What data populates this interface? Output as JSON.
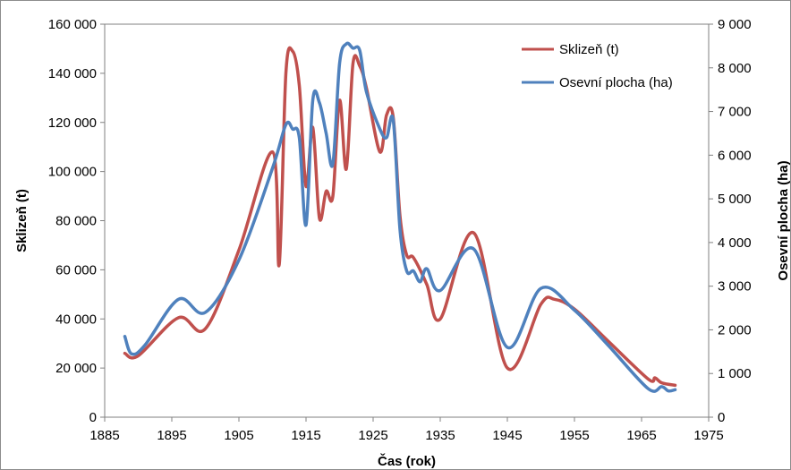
{
  "chart_data": {
    "type": "line",
    "title": "",
    "xlabel": "Čas (rok)",
    "ylabel": "Sklizeň (t)",
    "y2label": "Osevní plocha (ha)",
    "xlim": [
      1885,
      1975
    ],
    "ylim": [
      0,
      160000
    ],
    "y2lim": [
      0,
      9000
    ],
    "x_ticks": [
      "1885",
      "1895",
      "1905",
      "1915",
      "1925",
      "1935",
      "1945",
      "1955",
      "1965",
      "1975"
    ],
    "y_ticks": [
      "0",
      "20 000",
      "40 000",
      "60 000",
      "80 000",
      "100 000",
      "120 000",
      "140 000",
      "160 000"
    ],
    "y2_ticks": [
      "0",
      "1 000",
      "2 000",
      "3 000",
      "4 000",
      "5 000",
      "6 000",
      "7 000",
      "8 000",
      "9 000"
    ],
    "grid": false,
    "legend_position": "top-right",
    "series": [
      {
        "name": "Sklizeň (t)",
        "axis": "left",
        "color": "#c0504d",
        "points": [
          [
            1888,
            26000
          ],
          [
            1890,
            25000
          ],
          [
            1896,
            40500
          ],
          [
            1900,
            36000
          ],
          [
            1905,
            68000
          ],
          [
            1910,
            108000
          ],
          [
            1911,
            62000
          ],
          [
            1912,
            140000
          ],
          [
            1913,
            149000
          ],
          [
            1914,
            135000
          ],
          [
            1915,
            94000
          ],
          [
            1916,
            118000
          ],
          [
            1917,
            81000
          ],
          [
            1918,
            92000
          ],
          [
            1919,
            90000
          ],
          [
            1920,
            129000
          ],
          [
            1921,
            101000
          ],
          [
            1922,
            144000
          ],
          [
            1923,
            143000
          ],
          [
            1924,
            134000
          ],
          [
            1926,
            108000
          ],
          [
            1927,
            123000
          ],
          [
            1928,
            122000
          ],
          [
            1929,
            82000
          ],
          [
            1930,
            66000
          ],
          [
            1931,
            65000
          ],
          [
            1933,
            54000
          ],
          [
            1935,
            40000
          ],
          [
            1940,
            75000
          ],
          [
            1945,
            20000
          ],
          [
            1950,
            46000
          ],
          [
            1952,
            48000
          ],
          [
            1955,
            44000
          ],
          [
            1960,
            31000
          ],
          [
            1966,
            15500
          ],
          [
            1967,
            16000
          ],
          [
            1968,
            14000
          ],
          [
            1970,
            13000
          ]
        ]
      },
      {
        "name": "Osevní plocha (ha)",
        "axis": "right",
        "color": "#4f81bd",
        "points": [
          [
            1888,
            1850
          ],
          [
            1889,
            1450
          ],
          [
            1891,
            1650
          ],
          [
            1896,
            2700
          ],
          [
            1900,
            2400
          ],
          [
            1905,
            3600
          ],
          [
            1910,
            5700
          ],
          [
            1912,
            6700
          ],
          [
            1913,
            6600
          ],
          [
            1914,
            6400
          ],
          [
            1915,
            4400
          ],
          [
            1916,
            7250
          ],
          [
            1917,
            7200
          ],
          [
            1918,
            6500
          ],
          [
            1919,
            5800
          ],
          [
            1920,
            8100
          ],
          [
            1921,
            8550
          ],
          [
            1922,
            8450
          ],
          [
            1923,
            8400
          ],
          [
            1924,
            7450
          ],
          [
            1926,
            6600
          ],
          [
            1927,
            6400
          ],
          [
            1928,
            6800
          ],
          [
            1929,
            4300
          ],
          [
            1930,
            3350
          ],
          [
            1931,
            3350
          ],
          [
            1932,
            3100
          ],
          [
            1933,
            3400
          ],
          [
            1935,
            2900
          ],
          [
            1940,
            3850
          ],
          [
            1945,
            1600
          ],
          [
            1950,
            2950
          ],
          [
            1955,
            2450
          ],
          [
            1960,
            1650
          ],
          [
            1966,
            650
          ],
          [
            1968,
            700
          ],
          [
            1969,
            600
          ],
          [
            1970,
            630
          ]
        ]
      }
    ]
  }
}
